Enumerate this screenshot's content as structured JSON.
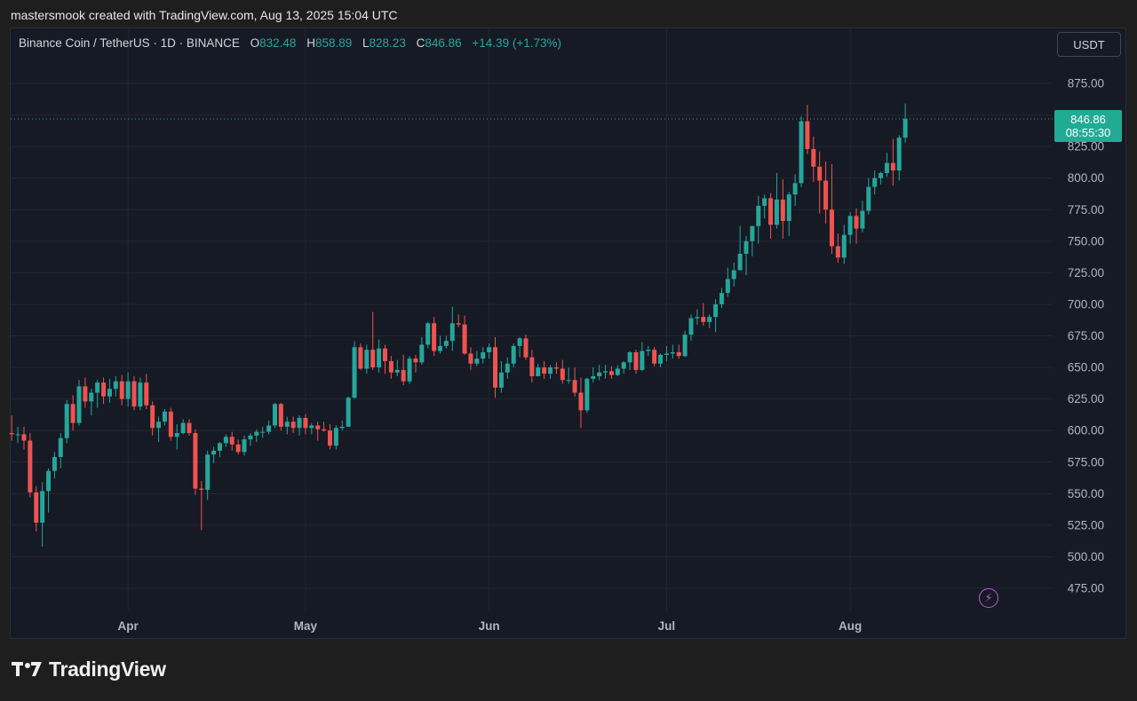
{
  "header": {
    "caption": "mastersmook created with TradingView.com, Aug 13, 2025 15:04 UTC"
  },
  "legend": {
    "symbol": "Binance Coin / TetherUS · 1D · BINANCE",
    "o_label": "O",
    "o_value": "832.48",
    "h_label": "H",
    "h_value": "858.89",
    "l_label": "L",
    "l_value": "828.23",
    "c_label": "C",
    "c_value": "846.86",
    "change": "+14.39 (+1.73%)"
  },
  "currency_button": "USDT",
  "last_price": {
    "price": "846.86",
    "countdown": "08:55:30"
  },
  "brand": {
    "name": "TradingView"
  },
  "icons": {
    "alert": "lightning-icon",
    "logo": "tradingview-logo-icon"
  },
  "colors": {
    "up": "#26a69a",
    "down": "#ef5350",
    "background": "#161a25",
    "accent": "#22ab94"
  },
  "chart_data": {
    "type": "candlestick",
    "series_name": "Binance Coin / TetherUS",
    "interval": "1D",
    "exchange": "BINANCE",
    "ylim": [
      460,
      890
    ],
    "y_ticks": [
      "475.00",
      "500.00",
      "525.00",
      "550.00",
      "575.00",
      "600.00",
      "625.00",
      "650.00",
      "675.00",
      "700.00",
      "725.00",
      "750.00",
      "775.00",
      "800.00",
      "825.00",
      "850.00",
      "875.00"
    ],
    "x_ticks": [
      "Apr",
      "May",
      "Jun",
      "Jul",
      "Aug"
    ],
    "x_tick_days": [
      19,
      48,
      78,
      107,
      137
    ],
    "grid": true,
    "last_close": 846.86,
    "candles": [
      [
        0,
        598,
        597,
        612,
        592
      ],
      [
        1,
        597,
        597,
        603,
        590
      ],
      [
        2,
        597,
        592,
        603,
        585
      ],
      [
        3,
        592,
        551,
        598,
        547
      ],
      [
        4,
        551,
        527,
        556,
        520
      ],
      [
        5,
        527,
        552,
        559,
        508
      ],
      [
        6,
        552,
        568,
        570,
        535
      ],
      [
        7,
        568,
        579,
        583,
        562
      ],
      [
        8,
        579,
        594,
        598,
        570
      ],
      [
        9,
        594,
        621,
        624,
        590
      ],
      [
        10,
        621,
        606,
        628,
        600
      ],
      [
        11,
        606,
        635,
        640,
        604
      ],
      [
        12,
        635,
        623,
        642,
        618
      ],
      [
        13,
        623,
        630,
        633,
        612
      ],
      [
        14,
        630,
        638,
        640,
        618
      ],
      [
        15,
        638,
        627,
        642,
        621
      ],
      [
        16,
        627,
        633,
        641,
        622
      ],
      [
        17,
        633,
        639,
        643,
        627
      ],
      [
        18,
        639,
        625,
        644,
        620
      ],
      [
        19,
        625,
        639,
        646,
        619
      ],
      [
        20,
        639,
        619,
        643,
        616
      ],
      [
        21,
        619,
        638,
        642,
        616
      ],
      [
        22,
        638,
        620,
        645,
        617
      ],
      [
        23,
        620,
        602,
        623,
        596
      ],
      [
        24,
        602,
        607,
        611,
        591
      ],
      [
        25,
        607,
        615,
        617,
        604
      ],
      [
        26,
        615,
        595,
        618,
        592
      ],
      [
        27,
        595,
        598,
        605,
        585
      ],
      [
        28,
        598,
        606,
        609,
        597
      ],
      [
        29,
        606,
        598,
        609,
        596
      ],
      [
        30,
        598,
        554,
        601,
        549
      ],
      [
        31,
        554,
        553,
        560,
        521
      ],
      [
        32,
        553,
        581,
        584,
        545
      ],
      [
        33,
        581,
        584,
        587,
        574
      ],
      [
        34,
        584,
        590,
        591,
        579
      ],
      [
        35,
        590,
        595,
        597,
        587
      ],
      [
        36,
        595,
        589,
        599,
        584
      ],
      [
        37,
        589,
        583,
        593,
        581
      ],
      [
        38,
        583,
        593,
        596,
        580
      ],
      [
        39,
        593,
        596,
        598,
        588
      ],
      [
        40,
        596,
        599,
        601,
        591
      ],
      [
        41,
        599,
        599,
        603,
        594
      ],
      [
        42,
        599,
        604,
        608,
        597
      ],
      [
        43,
        604,
        621,
        622,
        602
      ],
      [
        44,
        621,
        603,
        622,
        600
      ],
      [
        45,
        603,
        607,
        611,
        597
      ],
      [
        46,
        607,
        602,
        611,
        598
      ],
      [
        47,
        602,
        610,
        612,
        596
      ],
      [
        48,
        610,
        602,
        613,
        597
      ],
      [
        49,
        602,
        604,
        606,
        597
      ],
      [
        50,
        604,
        601,
        607,
        592
      ],
      [
        51,
        601,
        600,
        607,
        599
      ],
      [
        52,
        600,
        588,
        605,
        585
      ],
      [
        53,
        588,
        602,
        604,
        585
      ],
      [
        54,
        602,
        603,
        608,
        600
      ],
      [
        55,
        603,
        626,
        627,
        603
      ],
      [
        56,
        626,
        666,
        671,
        625
      ],
      [
        57,
        666,
        649,
        669,
        648
      ],
      [
        58,
        649,
        664,
        668,
        645
      ],
      [
        59,
        664,
        650,
        694,
        648
      ],
      [
        60,
        650,
        665,
        672,
        646
      ],
      [
        61,
        665,
        655,
        668,
        645
      ],
      [
        62,
        655,
        646,
        659,
        641
      ],
      [
        63,
        646,
        648,
        656,
        643
      ],
      [
        64,
        648,
        639,
        660,
        636
      ],
      [
        65,
        639,
        657,
        659,
        637
      ],
      [
        66,
        657,
        654,
        660,
        646
      ],
      [
        67,
        654,
        668,
        674,
        652
      ],
      [
        68,
        668,
        685,
        686,
        665
      ],
      [
        69,
        685,
        663,
        690,
        659
      ],
      [
        70,
        663,
        667,
        675,
        661
      ],
      [
        71,
        667,
        671,
        675,
        665
      ],
      [
        72,
        671,
        685,
        698,
        663
      ],
      [
        73,
        685,
        684,
        692,
        682
      ],
      [
        74,
        684,
        661,
        691,
        660
      ],
      [
        75,
        661,
        653,
        666,
        648
      ],
      [
        76,
        653,
        657,
        663,
        651
      ],
      [
        77,
        657,
        662,
        666,
        653
      ],
      [
        78,
        662,
        666,
        669,
        657
      ],
      [
        79,
        666,
        634,
        674,
        626
      ],
      [
        80,
        634,
        646,
        655,
        630
      ],
      [
        81,
        646,
        653,
        658,
        641
      ],
      [
        82,
        653,
        667,
        669,
        650
      ],
      [
        83,
        667,
        673,
        674,
        658
      ],
      [
        84,
        673,
        658,
        676,
        656
      ],
      [
        85,
        658,
        643,
        664,
        638
      ],
      [
        86,
        643,
        650,
        653,
        643
      ],
      [
        87,
        650,
        645,
        655,
        641
      ],
      [
        88,
        645,
        650,
        652,
        641
      ],
      [
        89,
        650,
        649,
        654,
        645
      ],
      [
        90,
        649,
        640,
        656,
        637
      ],
      [
        91,
        640,
        640,
        650,
        637
      ],
      [
        92,
        640,
        630,
        650,
        627
      ],
      [
        93,
        630,
        616,
        642,
        602
      ],
      [
        94,
        616,
        641,
        642,
        614
      ],
      [
        95,
        641,
        643,
        650,
        638
      ],
      [
        96,
        643,
        646,
        652,
        640
      ],
      [
        97,
        646,
        647,
        652,
        641
      ],
      [
        98,
        647,
        644,
        651,
        641
      ],
      [
        99,
        644,
        649,
        652,
        643
      ],
      [
        100,
        649,
        654,
        655,
        645
      ],
      [
        101,
        654,
        662,
        663,
        648
      ],
      [
        102,
        662,
        648,
        664,
        645
      ],
      [
        103,
        648,
        663,
        670,
        647
      ],
      [
        104,
        663,
        664,
        667,
        659
      ],
      [
        105,
        664,
        653,
        666,
        651
      ],
      [
        106,
        653,
        660,
        661,
        650
      ],
      [
        107,
        660,
        661,
        667,
        655
      ],
      [
        108,
        661,
        662,
        668,
        657
      ],
      [
        109,
        662,
        659,
        668,
        657
      ],
      [
        110,
        659,
        676,
        679,
        658
      ],
      [
        111,
        676,
        689,
        692,
        671
      ],
      [
        112,
        689,
        690,
        696,
        684
      ],
      [
        113,
        690,
        686,
        701,
        683
      ],
      [
        114,
        686,
        690,
        692,
        681
      ],
      [
        115,
        690,
        700,
        704,
        678
      ],
      [
        116,
        700,
        709,
        713,
        697
      ],
      [
        117,
        709,
        720,
        729,
        706
      ],
      [
        118,
        720,
        727,
        733,
        714
      ],
      [
        119,
        727,
        740,
        762,
        727
      ],
      [
        120,
        740,
        750,
        754,
        723
      ],
      [
        121,
        750,
        762,
        762,
        738
      ],
      [
        122,
        762,
        778,
        786,
        748
      ],
      [
        123,
        778,
        784,
        787,
        768
      ],
      [
        124,
        784,
        763,
        788,
        752
      ],
      [
        125,
        763,
        783,
        804,
        760
      ],
      [
        126,
        783,
        766,
        799,
        752
      ],
      [
        127,
        766,
        787,
        789,
        754
      ],
      [
        128,
        787,
        796,
        803,
        778
      ],
      [
        129,
        796,
        845,
        849,
        793
      ],
      [
        130,
        845,
        823,
        858,
        819
      ],
      [
        131,
        823,
        809,
        833,
        797
      ],
      [
        132,
        809,
        798,
        821,
        772
      ],
      [
        133,
        798,
        775,
        813,
        764
      ],
      [
        134,
        775,
        746,
        811,
        740
      ],
      [
        135,
        746,
        737,
        756,
        733
      ],
      [
        136,
        737,
        755,
        763,
        732
      ],
      [
        137,
        755,
        770,
        773,
        748
      ],
      [
        138,
        770,
        760,
        776,
        748
      ],
      [
        139,
        760,
        774,
        782,
        757
      ],
      [
        140,
        774,
        793,
        800,
        771
      ],
      [
        141,
        793,
        800,
        806,
        787
      ],
      [
        142,
        800,
        804,
        805,
        795
      ],
      [
        143,
        804,
        812,
        820,
        801
      ],
      [
        144,
        812,
        806,
        831,
        794
      ],
      [
        145,
        806,
        832,
        834,
        798
      ],
      [
        146,
        832,
        847,
        859,
        828
      ]
    ]
  }
}
